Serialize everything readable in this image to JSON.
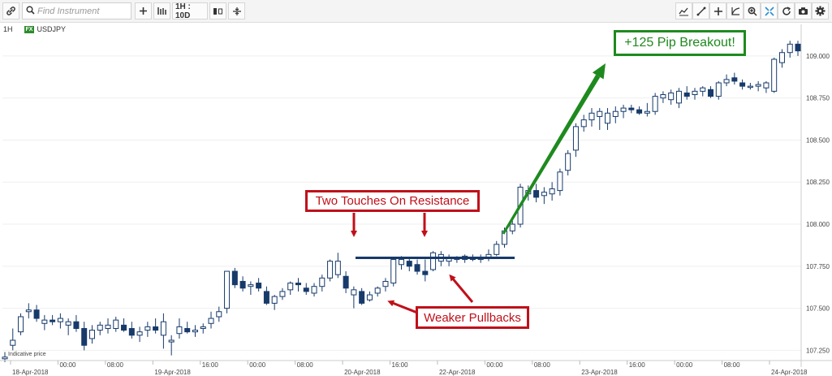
{
  "toolbar": {
    "search_placeholder": "Find Instrument",
    "timeframe_label": "1H : 10D",
    "left_icons": [
      "link-icon",
      "search-icon",
      "plus-icon",
      "indicators-icon",
      "candle-type-icon",
      "split-icon"
    ],
    "right_icons": [
      "draw-icon",
      "trendline-icon",
      "crosshair-icon",
      "fib-icon",
      "zoom-icon",
      "fit-icon",
      "refresh-icon",
      "camera-icon",
      "settings-icon"
    ]
  },
  "instrument": {
    "timeframe": "1H",
    "badge": "FX",
    "symbol": "USDJPY",
    "indicative": "Indicative price"
  },
  "colors": {
    "bull": "#ffffff",
    "bear": "#173a6b",
    "resistance": "#173a6b",
    "annotation_red": "#c0101a",
    "annotation_green": "#1e8a1e"
  },
  "annotations": {
    "resistance_label": "Two Touches On Resistance",
    "pullback_label": "Weaker Pullbacks",
    "breakout_label": "+125 Pip Breakout!"
  },
  "chart_data": {
    "type": "candlestick",
    "title": "",
    "ylim": [
      107.17,
      109.12
    ],
    "yticks": [
      "107.250",
      "107.500",
      "107.750",
      "108.000",
      "108.250",
      "108.500",
      "108.750",
      "109.000"
    ],
    "xticks": [
      "18-Apr-2018",
      "00:00",
      "08:00",
      "19-Apr-2018",
      "16:00",
      "00:00",
      "08:00",
      "20-Apr-2018",
      "16:00",
      "22-Apr-2018",
      "00:00",
      "08:00",
      "23-Apr-2018",
      "16:00",
      "00:00",
      "08:00",
      "24-Apr-2018"
    ],
    "resistance_level": 107.8,
    "candles": [
      {
        "o": 107.2,
        "h": 107.24,
        "l": 107.18,
        "c": 107.21
      },
      {
        "o": 107.28,
        "h": 107.38,
        "l": 107.25,
        "c": 107.31
      },
      {
        "o": 107.36,
        "h": 107.47,
        "l": 107.34,
        "c": 107.45
      },
      {
        "o": 107.48,
        "h": 107.53,
        "l": 107.44,
        "c": 107.49
      },
      {
        "o": 107.49,
        "h": 107.52,
        "l": 107.42,
        "c": 107.44
      },
      {
        "o": 107.41,
        "h": 107.46,
        "l": 107.37,
        "c": 107.43
      },
      {
        "o": 107.43,
        "h": 107.46,
        "l": 107.4,
        "c": 107.42
      },
      {
        "o": 107.42,
        "h": 107.47,
        "l": 107.38,
        "c": 107.44
      },
      {
        "o": 107.4,
        "h": 107.44,
        "l": 107.34,
        "c": 107.42
      },
      {
        "o": 107.42,
        "h": 107.46,
        "l": 107.36,
        "c": 107.38
      },
      {
        "o": 107.38,
        "h": 107.42,
        "l": 107.25,
        "c": 107.28
      },
      {
        "o": 107.32,
        "h": 107.4,
        "l": 107.29,
        "c": 107.37
      },
      {
        "o": 107.37,
        "h": 107.42,
        "l": 107.34,
        "c": 107.4
      },
      {
        "o": 107.38,
        "h": 107.44,
        "l": 107.35,
        "c": 107.4
      },
      {
        "o": 107.38,
        "h": 107.45,
        "l": 107.36,
        "c": 107.43
      },
      {
        "o": 107.4,
        "h": 107.44,
        "l": 107.36,
        "c": 107.37
      },
      {
        "o": 107.38,
        "h": 107.42,
        "l": 107.32,
        "c": 107.34
      },
      {
        "o": 107.34,
        "h": 107.39,
        "l": 107.3,
        "c": 107.36
      },
      {
        "o": 107.37,
        "h": 107.42,
        "l": 107.33,
        "c": 107.39
      },
      {
        "o": 107.39,
        "h": 107.44,
        "l": 107.35,
        "c": 107.37
      },
      {
        "o": 107.34,
        "h": 107.47,
        "l": 107.26,
        "c": 107.42
      },
      {
        "o": 107.3,
        "h": 107.34,
        "l": 107.22,
        "c": 107.31
      },
      {
        "o": 107.35,
        "h": 107.44,
        "l": 107.32,
        "c": 107.39
      },
      {
        "o": 107.38,
        "h": 107.42,
        "l": 107.35,
        "c": 107.36
      },
      {
        "o": 107.36,
        "h": 107.4,
        "l": 107.33,
        "c": 107.37
      },
      {
        "o": 107.38,
        "h": 107.41,
        "l": 107.35,
        "c": 107.39
      },
      {
        "o": 107.41,
        "h": 107.48,
        "l": 107.38,
        "c": 107.44
      },
      {
        "o": 107.45,
        "h": 107.51,
        "l": 107.42,
        "c": 107.48
      },
      {
        "o": 107.5,
        "h": 107.72,
        "l": 107.47,
        "c": 107.72
      },
      {
        "o": 107.72,
        "h": 107.74,
        "l": 107.62,
        "c": 107.64
      },
      {
        "o": 107.66,
        "h": 107.69,
        "l": 107.6,
        "c": 107.62
      },
      {
        "o": 107.63,
        "h": 107.66,
        "l": 107.58,
        "c": 107.64
      },
      {
        "o": 107.65,
        "h": 107.68,
        "l": 107.6,
        "c": 107.62
      },
      {
        "o": 107.6,
        "h": 107.63,
        "l": 107.52,
        "c": 107.53
      },
      {
        "o": 107.53,
        "h": 107.58,
        "l": 107.49,
        "c": 107.57
      },
      {
        "o": 107.57,
        "h": 107.62,
        "l": 107.55,
        "c": 107.6
      },
      {
        "o": 107.61,
        "h": 107.66,
        "l": 107.58,
        "c": 107.65
      },
      {
        "o": 107.65,
        "h": 107.68,
        "l": 107.6,
        "c": 107.64
      },
      {
        "o": 107.62,
        "h": 107.65,
        "l": 107.58,
        "c": 107.6
      },
      {
        "o": 107.59,
        "h": 107.65,
        "l": 107.57,
        "c": 107.63
      },
      {
        "o": 107.63,
        "h": 107.7,
        "l": 107.6,
        "c": 107.68
      },
      {
        "o": 107.68,
        "h": 107.79,
        "l": 107.66,
        "c": 107.78
      },
      {
        "o": 107.7,
        "h": 107.83,
        "l": 107.68,
        "c": 107.78
      },
      {
        "o": 107.69,
        "h": 107.72,
        "l": 107.59,
        "c": 107.62
      },
      {
        "o": 107.58,
        "h": 107.63,
        "l": 107.5,
        "c": 107.61
      },
      {
        "o": 107.6,
        "h": 107.62,
        "l": 107.52,
        "c": 107.53
      },
      {
        "o": 107.55,
        "h": 107.6,
        "l": 107.54,
        "c": 107.58
      },
      {
        "o": 107.59,
        "h": 107.63,
        "l": 107.57,
        "c": 107.62
      },
      {
        "o": 107.63,
        "h": 107.68,
        "l": 107.6,
        "c": 107.66
      },
      {
        "o": 107.65,
        "h": 107.8,
        "l": 107.63,
        "c": 107.79
      },
      {
        "o": 107.76,
        "h": 107.81,
        "l": 107.73,
        "c": 107.79
      },
      {
        "o": 107.78,
        "h": 107.8,
        "l": 107.72,
        "c": 107.75
      },
      {
        "o": 107.76,
        "h": 107.79,
        "l": 107.7,
        "c": 107.72
      },
      {
        "o": 107.72,
        "h": 107.79,
        "l": 107.66,
        "c": 107.7
      },
      {
        "o": 107.73,
        "h": 107.84,
        "l": 107.72,
        "c": 107.83
      },
      {
        "o": 107.78,
        "h": 107.84,
        "l": 107.75,
        "c": 107.82
      },
      {
        "o": 107.78,
        "h": 107.82,
        "l": 107.75,
        "c": 107.8
      },
      {
        "o": 107.79,
        "h": 107.81,
        "l": 107.77,
        "c": 107.8
      },
      {
        "o": 107.79,
        "h": 107.82,
        "l": 107.77,
        "c": 107.81
      },
      {
        "o": 107.8,
        "h": 107.82,
        "l": 107.78,
        "c": 107.79
      },
      {
        "o": 107.79,
        "h": 107.82,
        "l": 107.77,
        "c": 107.8
      },
      {
        "o": 107.8,
        "h": 107.85,
        "l": 107.78,
        "c": 107.82
      },
      {
        "o": 107.82,
        "h": 107.9,
        "l": 107.81,
        "c": 107.88
      },
      {
        "o": 107.88,
        "h": 107.98,
        "l": 107.86,
        "c": 107.96
      },
      {
        "o": 107.96,
        "h": 108.02,
        "l": 107.94,
        "c": 108.0
      },
      {
        "o": 108.0,
        "h": 108.24,
        "l": 107.98,
        "c": 108.22
      },
      {
        "o": 108.18,
        "h": 108.23,
        "l": 108.14,
        "c": 108.2
      },
      {
        "o": 108.2,
        "h": 108.24,
        "l": 108.13,
        "c": 108.16
      },
      {
        "o": 108.17,
        "h": 108.22,
        "l": 108.12,
        "c": 108.19
      },
      {
        "o": 108.18,
        "h": 108.25,
        "l": 108.14,
        "c": 108.21
      },
      {
        "o": 108.2,
        "h": 108.33,
        "l": 108.17,
        "c": 108.31
      },
      {
        "o": 108.32,
        "h": 108.44,
        "l": 108.29,
        "c": 108.42
      },
      {
        "o": 108.44,
        "h": 108.6,
        "l": 108.4,
        "c": 108.58
      },
      {
        "o": 108.58,
        "h": 108.65,
        "l": 108.55,
        "c": 108.62
      },
      {
        "o": 108.62,
        "h": 108.69,
        "l": 108.58,
        "c": 108.66
      },
      {
        "o": 108.64,
        "h": 108.69,
        "l": 108.56,
        "c": 108.67
      },
      {
        "o": 108.6,
        "h": 108.69,
        "l": 108.56,
        "c": 108.66
      },
      {
        "o": 108.64,
        "h": 108.7,
        "l": 108.6,
        "c": 108.67
      },
      {
        "o": 108.67,
        "h": 108.71,
        "l": 108.63,
        "c": 108.69
      },
      {
        "o": 108.69,
        "h": 108.71,
        "l": 108.66,
        "c": 108.68
      },
      {
        "o": 108.68,
        "h": 108.7,
        "l": 108.65,
        "c": 108.66
      },
      {
        "o": 108.66,
        "h": 108.72,
        "l": 108.64,
        "c": 108.67
      },
      {
        "o": 108.67,
        "h": 108.78,
        "l": 108.65,
        "c": 108.76
      },
      {
        "o": 108.75,
        "h": 108.79,
        "l": 108.72,
        "c": 108.77
      },
      {
        "o": 108.74,
        "h": 108.8,
        "l": 108.71,
        "c": 108.78
      },
      {
        "o": 108.72,
        "h": 108.81,
        "l": 108.69,
        "c": 108.79
      },
      {
        "o": 108.78,
        "h": 108.82,
        "l": 108.74,
        "c": 108.76
      },
      {
        "o": 108.77,
        "h": 108.81,
        "l": 108.74,
        "c": 108.79
      },
      {
        "o": 108.79,
        "h": 108.82,
        "l": 108.76,
        "c": 108.81
      },
      {
        "o": 108.8,
        "h": 108.82,
        "l": 108.75,
        "c": 108.76
      },
      {
        "o": 108.76,
        "h": 108.85,
        "l": 108.74,
        "c": 108.84
      },
      {
        "o": 108.84,
        "h": 108.89,
        "l": 108.82,
        "c": 108.86
      },
      {
        "o": 108.87,
        "h": 108.9,
        "l": 108.83,
        "c": 108.85
      },
      {
        "o": 108.84,
        "h": 108.86,
        "l": 108.8,
        "c": 108.82
      },
      {
        "o": 108.82,
        "h": 108.84,
        "l": 108.8,
        "c": 108.82
      },
      {
        "o": 108.82,
        "h": 108.85,
        "l": 108.79,
        "c": 108.83
      },
      {
        "o": 108.81,
        "h": 108.85,
        "l": 108.78,
        "c": 108.84
      },
      {
        "o": 108.79,
        "h": 108.99,
        "l": 108.78,
        "c": 108.98
      },
      {
        "o": 108.96,
        "h": 109.04,
        "l": 108.93,
        "c": 109.02
      },
      {
        "o": 109.02,
        "h": 109.09,
        "l": 108.99,
        "c": 109.07
      },
      {
        "o": 109.07,
        "h": 109.09,
        "l": 109.0,
        "c": 109.03
      }
    ]
  }
}
